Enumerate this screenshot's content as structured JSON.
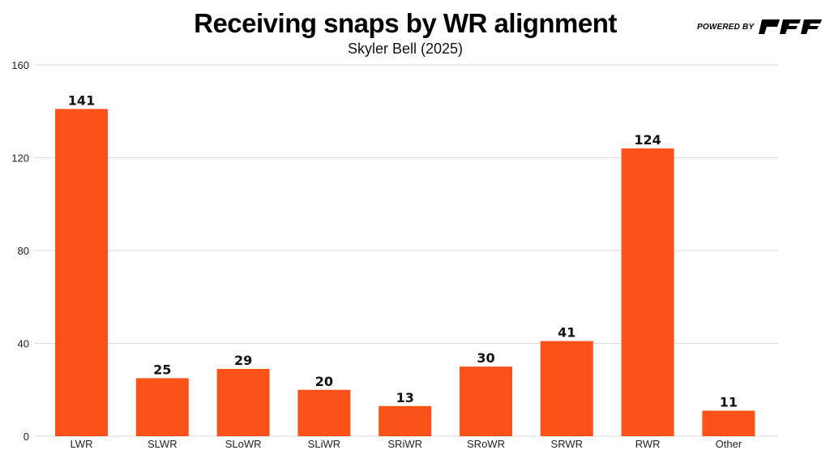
{
  "brand": {
    "powered_by": "POWERED BY",
    "logo": "PFF"
  },
  "chart_data": {
    "type": "bar",
    "title": "Receiving snaps by WR alignment",
    "subtitle": "Skyler Bell (2025)",
    "xlabel": "",
    "ylabel": "",
    "categories": [
      "LWR",
      "SLWR",
      "SLoWR",
      "SLiWR",
      "SRiWR",
      "SRoWR",
      "SRWR",
      "RWR",
      "Other"
    ],
    "values": [
      141,
      25,
      29,
      20,
      13,
      30,
      41,
      124,
      11
    ],
    "ylim": [
      0,
      160
    ],
    "yticks": [
      0,
      40,
      80,
      120,
      160
    ],
    "grid": true,
    "legend": "none",
    "bar_color": "#fa5218"
  }
}
